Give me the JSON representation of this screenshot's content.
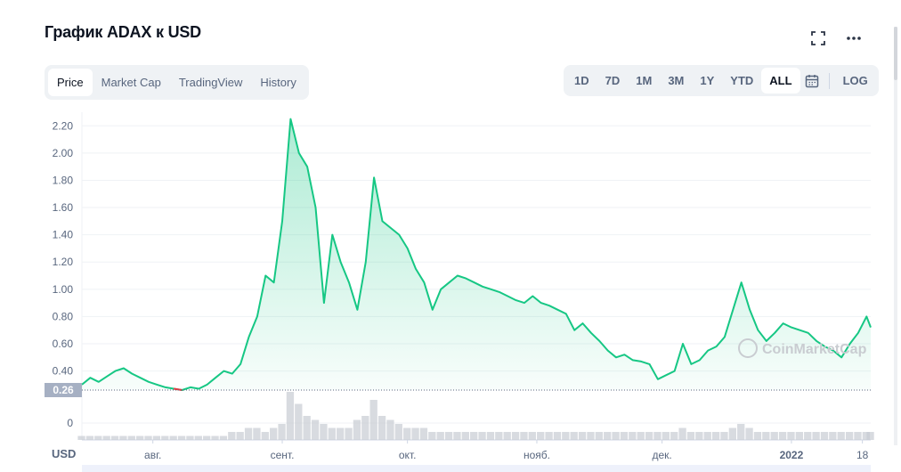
{
  "title": "График ADAX к USD",
  "icons": {
    "fullscreen": "fullscreen-icon",
    "more": "more-icon",
    "calendar": "calendar-icon"
  },
  "tabs": [
    {
      "label": "Price",
      "active": true
    },
    {
      "label": "Market Cap",
      "active": false
    },
    {
      "label": "TradingView",
      "active": false
    },
    {
      "label": "History",
      "active": false
    }
  ],
  "ranges": [
    {
      "label": "1D",
      "active": false
    },
    {
      "label": "7D",
      "active": false
    },
    {
      "label": "1M",
      "active": false
    },
    {
      "label": "3M",
      "active": false
    },
    {
      "label": "1Y",
      "active": false
    },
    {
      "label": "YTD",
      "active": false
    },
    {
      "label": "ALL",
      "active": true
    }
  ],
  "log_label": "LOG",
  "colors": {
    "up": "#16c784",
    "down": "#ea3943",
    "grid": "#eff2f5",
    "volume": "#c8ccd3",
    "axis_text": "#58667e"
  },
  "chart_data": {
    "type": "area",
    "currency_label": "USD",
    "y_ticks": [
      "2.20",
      "2.00",
      "1.80",
      "1.60",
      "1.40",
      "1.20",
      "1.00",
      "0.80",
      "0.60",
      "0.40"
    ],
    "ylim": [
      0.26,
      2.3
    ],
    "x_ticks": [
      "авг.",
      "сент.",
      "окт.",
      "нояб.",
      "дек.",
      "2022",
      "18"
    ],
    "x_tick_dates": [
      "2021-08-01",
      "2021-09-01",
      "2021-10-01",
      "2021-11-01",
      "2021-12-01",
      "2022-01-01",
      "2022-01-18"
    ],
    "reference_price": "0.26",
    "volume_tick": "0",
    "watermark": "CoinMarketCap",
    "series": [
      {
        "x": [
          "2021-07-15",
          "2021-07-17",
          "2021-07-19",
          "2021-07-21",
          "2021-07-23",
          "2021-07-25",
          "2021-07-27",
          "2021-07-29",
          "2021-07-31",
          "2021-08-02",
          "2021-08-04",
          "2021-08-06",
          "2021-08-08",
          "2021-08-10",
          "2021-08-12",
          "2021-08-14",
          "2021-08-16",
          "2021-08-18",
          "2021-08-20",
          "2021-08-22",
          "2021-08-24",
          "2021-08-26",
          "2021-08-28",
          "2021-08-30",
          "2021-09-01",
          "2021-09-03",
          "2021-09-05",
          "2021-09-07",
          "2021-09-09",
          "2021-09-11",
          "2021-09-13",
          "2021-09-15",
          "2021-09-17",
          "2021-09-19",
          "2021-09-21",
          "2021-09-23",
          "2021-09-25",
          "2021-09-27",
          "2021-09-29",
          "2021-10-01",
          "2021-10-03",
          "2021-10-05",
          "2021-10-07",
          "2021-10-09",
          "2021-10-11",
          "2021-10-13",
          "2021-10-15",
          "2021-10-17",
          "2021-10-19",
          "2021-10-21",
          "2021-10-23",
          "2021-10-25",
          "2021-10-27",
          "2021-10-29",
          "2021-10-31",
          "2021-11-02",
          "2021-11-04",
          "2021-11-06",
          "2021-11-08",
          "2021-11-10",
          "2021-11-12",
          "2021-11-14",
          "2021-11-16",
          "2021-11-18",
          "2021-11-20",
          "2021-11-22",
          "2021-11-24",
          "2021-11-26",
          "2021-11-28",
          "2021-11-30",
          "2021-12-02",
          "2021-12-04",
          "2021-12-06",
          "2021-12-08",
          "2021-12-10",
          "2021-12-12",
          "2021-12-14",
          "2021-12-16",
          "2021-12-18",
          "2021-12-20",
          "2021-12-22",
          "2021-12-24",
          "2021-12-26",
          "2021-12-28",
          "2021-12-30",
          "2022-01-01",
          "2022-01-03",
          "2022-01-05",
          "2022-01-07",
          "2022-01-09",
          "2022-01-11",
          "2022-01-13",
          "2022-01-15",
          "2022-01-17",
          "2022-01-19",
          "2022-01-20"
        ],
        "y": [
          0.3,
          0.35,
          0.32,
          0.36,
          0.4,
          0.42,
          0.38,
          0.35,
          0.32,
          0.3,
          0.28,
          0.27,
          0.26,
          0.28,
          0.27,
          0.3,
          0.35,
          0.4,
          0.38,
          0.45,
          0.65,
          0.8,
          1.1,
          1.05,
          1.5,
          2.25,
          2.0,
          1.9,
          1.6,
          0.9,
          1.4,
          1.2,
          1.05,
          0.85,
          1.2,
          1.82,
          1.5,
          1.45,
          1.4,
          1.3,
          1.15,
          1.05,
          0.85,
          1.0,
          1.05,
          1.1,
          1.08,
          1.05,
          1.02,
          1.0,
          0.98,
          0.95,
          0.92,
          0.9,
          0.95,
          0.9,
          0.88,
          0.85,
          0.82,
          0.7,
          0.75,
          0.68,
          0.62,
          0.55,
          0.5,
          0.52,
          0.48,
          0.47,
          0.45,
          0.34,
          0.37,
          0.4,
          0.6,
          0.45,
          0.48,
          0.55,
          0.58,
          0.65,
          0.85,
          1.05,
          0.85,
          0.7,
          0.62,
          0.68,
          0.75,
          0.72,
          0.7,
          0.68,
          0.62,
          0.58,
          0.55,
          0.5,
          0.6,
          0.68,
          0.8,
          0.72
        ],
        "volume": [
          1,
          1,
          1,
          1,
          1,
          1,
          1,
          1,
          1,
          1,
          1,
          1,
          1,
          1,
          1,
          1,
          1,
          1,
          2,
          2,
          3,
          3,
          2,
          3,
          4,
          12,
          9,
          6,
          5,
          4,
          3,
          3,
          3,
          5,
          6,
          10,
          6,
          5,
          4,
          3,
          3,
          3,
          2,
          2,
          2,
          2,
          2,
          2,
          2,
          2,
          2,
          2,
          2,
          2,
          2,
          2,
          2,
          2,
          2,
          2,
          2,
          2,
          2,
          2,
          2,
          2,
          2,
          2,
          2,
          2,
          2,
          2,
          3,
          2,
          2,
          2,
          2,
          2,
          3,
          4,
          3,
          2,
          2,
          2,
          2,
          2,
          2,
          2,
          2,
          2,
          2,
          2,
          2,
          2,
          2,
          2
        ]
      }
    ]
  }
}
